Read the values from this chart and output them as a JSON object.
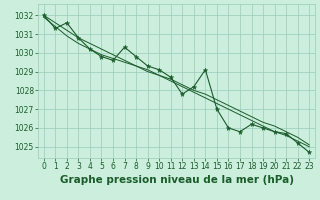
{
  "xlabel": "Graphe pression niveau de la mer (hPa)",
  "bg_color": "#cceedd",
  "grid_color": "#99ccbb",
  "line_color": "#1a5c2a",
  "marker_color": "#1a5c2a",
  "ylim": [
    1024.4,
    1032.6
  ],
  "xlim": [
    -0.5,
    23.5
  ],
  "yticks": [
    1025,
    1026,
    1027,
    1028,
    1029,
    1030,
    1031,
    1032
  ],
  "xticks": [
    0,
    1,
    2,
    3,
    4,
    5,
    6,
    7,
    8,
    9,
    10,
    11,
    12,
    13,
    14,
    15,
    16,
    17,
    18,
    19,
    20,
    21,
    22,
    23
  ],
  "hours": [
    0,
    1,
    2,
    3,
    4,
    5,
    6,
    7,
    8,
    9,
    10,
    11,
    12,
    13,
    14,
    15,
    16,
    17,
    18,
    19,
    20,
    21,
    22,
    23
  ],
  "pressure_main": [
    1032.0,
    1031.3,
    1031.6,
    1030.8,
    1030.2,
    1029.8,
    1029.6,
    1030.3,
    1029.8,
    1029.3,
    1029.1,
    1028.7,
    1027.8,
    1028.2,
    1029.1,
    1027.0,
    1026.0,
    1025.8,
    1026.2,
    1026.0,
    1025.8,
    1025.7,
    1025.2,
    1024.7
  ],
  "pressure_trend1": [
    1031.9,
    1031.4,
    1030.9,
    1030.5,
    1030.2,
    1029.9,
    1029.7,
    1029.5,
    1029.3,
    1029.1,
    1028.8,
    1028.6,
    1028.3,
    1028.0,
    1027.8,
    1027.5,
    1027.2,
    1026.9,
    1026.6,
    1026.3,
    1026.1,
    1025.8,
    1025.5,
    1025.1
  ],
  "pressure_trend2": [
    1032.0,
    1031.6,
    1031.2,
    1030.8,
    1030.5,
    1030.2,
    1029.9,
    1029.6,
    1029.3,
    1029.0,
    1028.8,
    1028.5,
    1028.2,
    1027.9,
    1027.6,
    1027.3,
    1027.0,
    1026.7,
    1026.4,
    1026.1,
    1025.8,
    1025.6,
    1025.3,
    1025.0
  ],
  "font_color": "#1a5c2a",
  "tick_fontsize": 5.5,
  "xlabel_fontsize": 7.5
}
